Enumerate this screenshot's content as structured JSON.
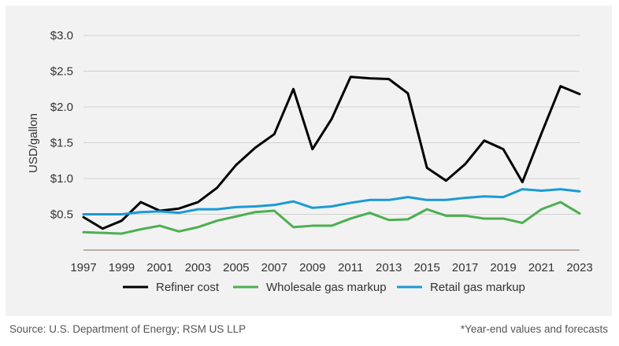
{
  "chart_data": {
    "type": "line",
    "title": "",
    "ylabel": "USD/gallon",
    "xlabel": "",
    "ylim": [
      0,
      3.0
    ],
    "yticks": [
      0.5,
      1.0,
      1.5,
      2.0,
      2.5,
      3.0
    ],
    "ytick_labels": [
      "$0.5",
      "$1.0",
      "$1.5",
      "$2.0",
      "$2.5",
      "$3.0"
    ],
    "xlim": [
      1997,
      2023
    ],
    "xticks": [
      1997,
      1999,
      2001,
      2003,
      2005,
      2007,
      2009,
      2011,
      2013,
      2015,
      2017,
      2019,
      2021,
      2023
    ],
    "xtick_labels": [
      "1997",
      "1999",
      "2001",
      "2003",
      "2005",
      "2007",
      "2009",
      "2011",
      "2013",
      "2015",
      "2017",
      "2019",
      "2021",
      "2023"
    ],
    "x": [
      1997,
      1998,
      1999,
      2000,
      2001,
      2002,
      2003,
      2004,
      2005,
      2006,
      2007,
      2008,
      2009,
      2010,
      2011,
      2012,
      2013,
      2014,
      2015,
      2016,
      2017,
      2018,
      2019,
      2020,
      2021,
      2022,
      2023
    ],
    "series": [
      {
        "name": "Refiner cost",
        "color": "#000000",
        "values": [
          0.46,
          0.3,
          0.41,
          0.67,
          0.55,
          0.58,
          0.67,
          0.87,
          1.19,
          1.43,
          1.62,
          2.25,
          1.41,
          1.83,
          2.42,
          2.4,
          2.39,
          2.19,
          1.15,
          0.97,
          1.2,
          1.53,
          1.41,
          0.95,
          1.63,
          2.29,
          2.18
        ]
      },
      {
        "name": "Wholesale gas markup",
        "color": "#4caf50",
        "values": [
          0.25,
          0.24,
          0.23,
          0.29,
          0.34,
          0.26,
          0.32,
          0.41,
          0.47,
          0.53,
          0.55,
          0.32,
          0.34,
          0.34,
          0.44,
          0.52,
          0.42,
          0.43,
          0.57,
          0.48,
          0.48,
          0.44,
          0.44,
          0.38,
          0.57,
          0.67,
          0.51
        ]
      },
      {
        "name": "Retail gas markup",
        "color": "#1a9ad6",
        "values": [
          0.5,
          0.5,
          0.5,
          0.53,
          0.54,
          0.52,
          0.57,
          0.57,
          0.6,
          0.61,
          0.63,
          0.68,
          0.59,
          0.61,
          0.66,
          0.7,
          0.7,
          0.74,
          0.7,
          0.7,
          0.73,
          0.75,
          0.74,
          0.85,
          0.83,
          0.85,
          0.82
        ]
      }
    ],
    "legend_position": "bottom-center"
  },
  "footer": {
    "source": "Source: U.S. Department of Energy; RSM US LLP",
    "note": "*Year-end values and forecasts"
  }
}
